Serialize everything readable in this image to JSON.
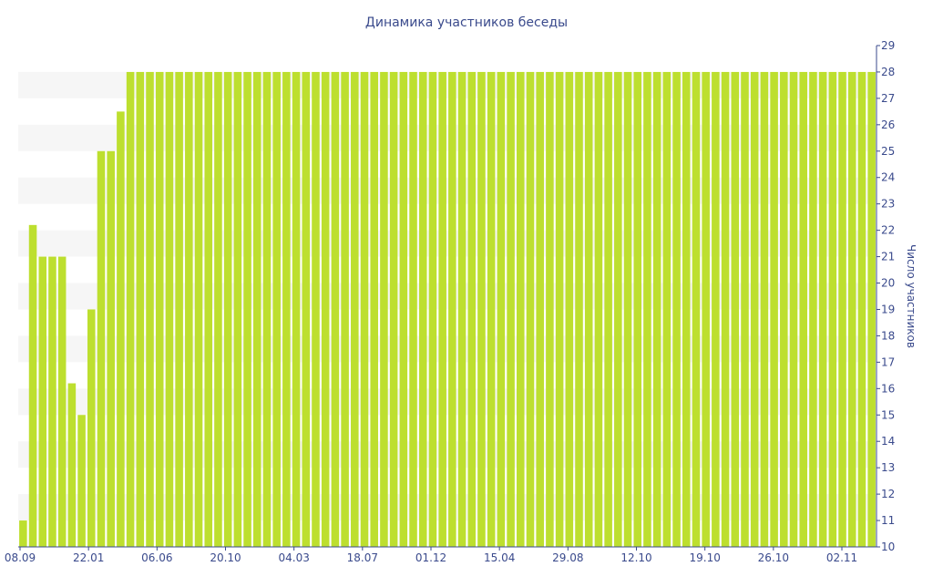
{
  "chart_data": {
    "type": "bar",
    "title": "Динамика участников беседы",
    "xlabel": "",
    "ylabel": "Число участников",
    "y_axis_side": "right",
    "ylim": [
      10,
      29
    ],
    "y_ticks": [
      10,
      11,
      12,
      13,
      14,
      15,
      16,
      17,
      18,
      19,
      20,
      21,
      22,
      23,
      24,
      25,
      26,
      27,
      28,
      29
    ],
    "x_tick_labels": [
      "08.09",
      "22.01",
      "06.06",
      "20.10",
      "04.03",
      "18.07",
      "01.12",
      "15.04",
      "29.08",
      "12.10",
      "19.10",
      "26.10",
      "02.11"
    ],
    "grid": "alternating horizontal bands",
    "legend": "none",
    "values": [
      11,
      22.2,
      21,
      21,
      21,
      16.2,
      15,
      19,
      25,
      25,
      26.5,
      28,
      28,
      28,
      28,
      28,
      28,
      28,
      28,
      28,
      28,
      28,
      28,
      28,
      28,
      28,
      28,
      28,
      28,
      28,
      28,
      28,
      28,
      28,
      28,
      28,
      28,
      28,
      28,
      28,
      28,
      28,
      28,
      28,
      28,
      28,
      28,
      28,
      28,
      28,
      28,
      28,
      28,
      28,
      28,
      28,
      28,
      28,
      28,
      28,
      28,
      28,
      28,
      28,
      28,
      28,
      28,
      28,
      28,
      28,
      28,
      28,
      28,
      28,
      28,
      28,
      28,
      28,
      28,
      28,
      28,
      28,
      28,
      28,
      28,
      28,
      28,
      28
    ],
    "colors": {
      "bar": "#bddf2f",
      "band": "#f6f6f6",
      "axis": "#3a4a8c",
      "text": "#3a4a8c"
    }
  }
}
